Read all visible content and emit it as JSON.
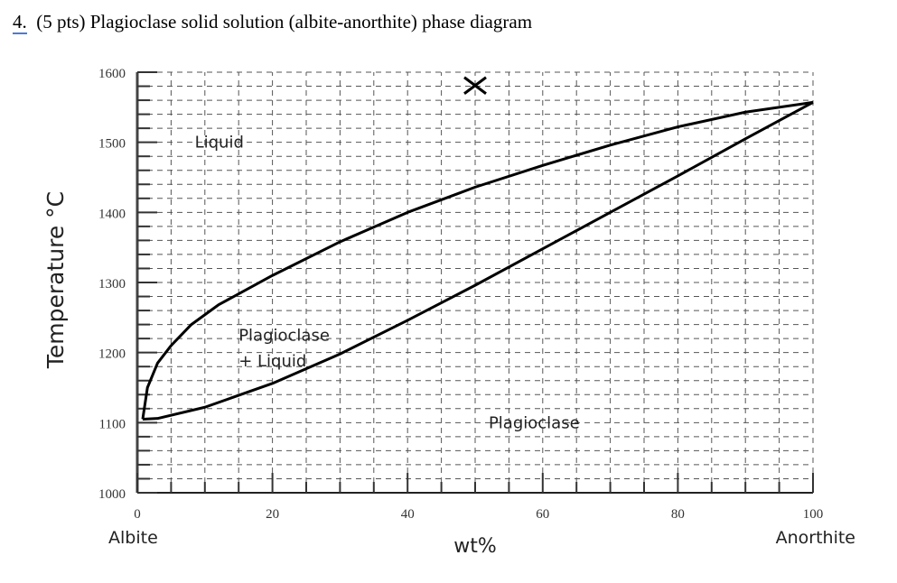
{
  "question": {
    "number": "4.",
    "text": "(5 pts) Plagioclase solid solution (albite-anorthite) phase diagram"
  },
  "chart_data": {
    "type": "line",
    "xlabel": "wt%",
    "ylabel": "Temperature °C",
    "x_end_labels": {
      "left": "Albite",
      "right": "Anorthite"
    },
    "xlim": [
      0,
      100
    ],
    "ylim": [
      1000,
      1600
    ],
    "x_ticks": [
      0,
      20,
      40,
      60,
      80,
      100
    ],
    "y_ticks": [
      1000,
      1100,
      1200,
      1300,
      1400,
      1500,
      1600
    ],
    "grid": true,
    "series": [
      {
        "id": "liquidus",
        "x": [
          0.8,
          1.5,
          3,
          5,
          8,
          12,
          20,
          30,
          40,
          50,
          60,
          70,
          80,
          90,
          100
        ],
        "y": [
          1105,
          1150,
          1185,
          1210,
          1240,
          1268,
          1310,
          1358,
          1400,
          1436,
          1467,
          1496,
          1522,
          1543,
          1557
        ]
      },
      {
        "id": "solidus",
        "x": [
          0.8,
          3,
          10,
          20,
          30,
          40,
          50,
          60,
          70,
          80,
          90,
          100
        ],
        "y": [
          1105,
          1106,
          1122,
          1156,
          1198,
          1246,
          1296,
          1348,
          1400,
          1452,
          1505,
          1557
        ]
      }
    ],
    "annotations": [
      {
        "text": "Liquid",
        "x": 8.5,
        "y": 1500
      },
      {
        "text": "Plagioclase",
        "x": 15,
        "y": 1225
      },
      {
        "text": "+ Liquid",
        "x": 15,
        "y": 1188
      },
      {
        "text": "Plagioclase",
        "x": 52,
        "y": 1100
      }
    ],
    "marker": {
      "symbol": "X",
      "x": 50,
      "y": 1581
    }
  }
}
